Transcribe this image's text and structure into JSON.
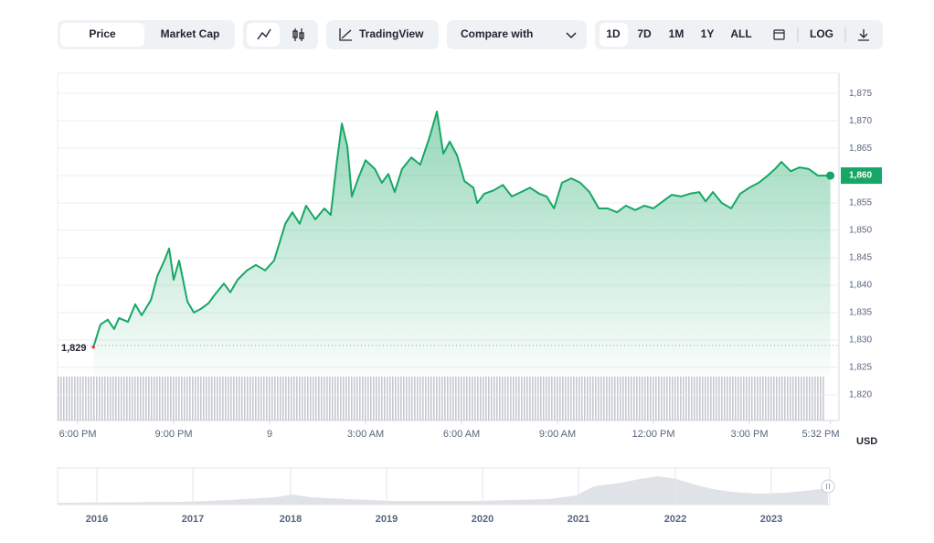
{
  "toolbar": {
    "views": [
      "Price",
      "Market Cap"
    ],
    "tradingview": "TradingView",
    "compare": "Compare with",
    "ranges": [
      "1D",
      "7D",
      "1M",
      "1Y",
      "ALL"
    ],
    "log": "LOG"
  },
  "chart_data": {
    "type": "area",
    "color": "#16a765",
    "x": [
      0.49,
      0.71,
      0.94,
      1.14,
      1.29,
      1.57,
      1.8,
      2,
      2.29,
      2.49,
      2.71,
      2.86,
      3,
      3.17,
      3.43,
      3.63,
      3.86,
      4.09,
      4.29,
      4.57,
      4.77,
      5,
      5.29,
      5.57,
      5.86,
      6.14,
      6.49,
      6.71,
      6.94,
      7.14,
      7.43,
      7.71,
      7.91,
      8.09,
      8.26,
      8.43,
      8.57,
      8.77,
      9,
      9.29,
      9.51,
      9.71,
      9.91,
      10.14,
      10.43,
      10.71,
      11,
      11.23,
      11.43,
      11.63,
      11.86,
      12.09,
      12.37,
      12.49,
      12.71,
      13,
      13.29,
      13.57,
      13.86,
      14.14,
      14.43,
      14.66,
      14.89,
      15.14,
      15.43,
      15.71,
      16,
      16.29,
      16.57,
      16.86,
      17.14,
      17.43,
      17.71,
      18,
      18.29,
      18.57,
      18.86,
      19.14,
      19.43,
      19.63,
      19.86,
      20.14,
      20.43,
      20.71,
      21,
      21.29,
      21.57,
      21.8,
      22,
      22.29,
      22.57,
      22.86,
      23.14,
      23.53
    ],
    "values": [
      1828.7,
      1832.8,
      1833.7,
      1832,
      1834,
      1833.3,
      1836.5,
      1834.5,
      1837.3,
      1841.7,
      1844.5,
      1846.7,
      1841,
      1844.5,
      1837,
      1835,
      1835.7,
      1836.7,
      1838.3,
      1840.3,
      1838.7,
      1841,
      1842.7,
      1843.7,
      1842.7,
      1844.5,
      1851.2,
      1853.3,
      1851.2,
      1854.5,
      1852,
      1854,
      1852.8,
      1862,
      1869.5,
      1865.3,
      1856.2,
      1859.5,
      1862.8,
      1861.2,
      1858.7,
      1860.3,
      1857,
      1861.2,
      1863.3,
      1862,
      1867,
      1871.7,
      1864,
      1866.2,
      1863.7,
      1859,
      1857.8,
      1855,
      1856.7,
      1857.3,
      1858.3,
      1856.2,
      1857,
      1857.8,
      1856.7,
      1856.2,
      1854,
      1858.7,
      1859.5,
      1858.7,
      1857,
      1854,
      1854,
      1853.3,
      1854.5,
      1853.7,
      1854.5,
      1854,
      1855.3,
      1856.5,
      1856.2,
      1856.7,
      1857,
      1855.3,
      1857,
      1855,
      1854,
      1856.7,
      1857.8,
      1858.7,
      1860,
      1861.2,
      1862.5,
      1860.8,
      1861.5,
      1861.2,
      1860,
      1860
    ],
    "xlim": [
      -0.63,
      23.8
    ],
    "ylim": [
      1815.3,
      1878.7
    ],
    "xticks": [
      {
        "value": 0,
        "label": "6:00 PM"
      },
      {
        "value": 3,
        "label": "9:00 PM"
      },
      {
        "value": 6,
        "label": "9"
      },
      {
        "value": 9,
        "label": "3:00 AM"
      },
      {
        "value": 12,
        "label": "6:00 AM"
      },
      {
        "value": 15,
        "label": "9:00 AM"
      },
      {
        "value": 18,
        "label": "12:00 PM"
      },
      {
        "value": 21,
        "label": "3:00 PM"
      },
      {
        "value": 23.53,
        "label": "5:32 PM"
      }
    ],
    "yticks": [
      {
        "value": 1820,
        "label": "1,820"
      },
      {
        "value": 1825,
        "label": "1,825"
      },
      {
        "value": 1830,
        "label": "1,830"
      },
      {
        "value": 1835,
        "label": "1,835"
      },
      {
        "value": 1840,
        "label": "1,840"
      },
      {
        "value": 1845,
        "label": "1,845"
      },
      {
        "value": 1850,
        "label": "1,850"
      },
      {
        "value": 1855,
        "label": "1,855"
      },
      {
        "value": 1860,
        "label": "1,860"
      },
      {
        "value": 1865,
        "label": "1,865"
      },
      {
        "value": 1870,
        "label": "1,870"
      },
      {
        "value": 1875,
        "label": "1,875"
      }
    ],
    "grid": true,
    "reference_line": {
      "value": 1829,
      "label": "1,829"
    },
    "last_price": {
      "value": 1860,
      "label": "1,860"
    },
    "unit_label": "USD"
  },
  "navigator": {
    "years": [
      "2016",
      "2017",
      "2018",
      "2019",
      "2020",
      "2021",
      "2022",
      "2023"
    ]
  }
}
